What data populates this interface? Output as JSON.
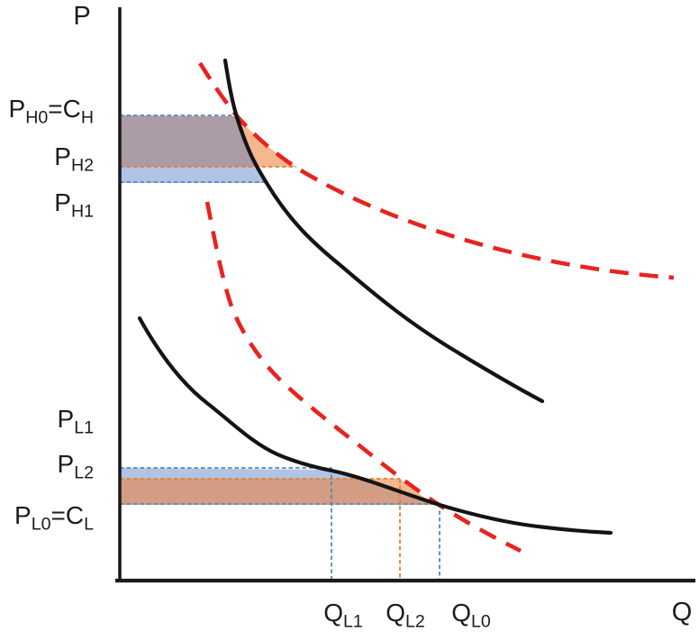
{
  "figure": {
    "type": "economics price-quantity diagram",
    "axes": {
      "y_title": "P",
      "x_title": "Q"
    },
    "price_labels": [
      {
        "key": "ph0",
        "text": "P_{H0}=C_{H}"
      },
      {
        "key": "ph2",
        "text": "P_{H2}"
      },
      {
        "key": "ph1",
        "text": "P_{H1}"
      },
      {
        "key": "pl1",
        "text": "P_{L1}"
      },
      {
        "key": "pl2",
        "text": "P_{L2}"
      },
      {
        "key": "pl0",
        "text": "P_{L0}=C_{L}"
      }
    ],
    "quantity_labels": [
      {
        "key": "ql1",
        "text": "Q_{L1}"
      },
      {
        "key": "ql2",
        "text": "Q_{L2}"
      },
      {
        "key": "ql0",
        "text": "Q_{L0}"
      }
    ],
    "curves": [
      {
        "key": "upper_solid",
        "style": "solid",
        "color": "#141414"
      },
      {
        "key": "upper_dashed",
        "style": "dashed",
        "color": "#e8231f"
      },
      {
        "key": "lower_solid",
        "style": "solid",
        "color": "#141414"
      },
      {
        "key": "lower_dashed",
        "style": "dashed",
        "color": "#e8231f"
      }
    ],
    "regions": [
      {
        "key": "upper_blue_band",
        "color": "#4472c4"
      },
      {
        "key": "upper_orange_area",
        "color": "#ed7d31"
      },
      {
        "key": "lower_blue_band",
        "color": "#4472c4"
      },
      {
        "key": "lower_orange_area",
        "color": "#ed7d31"
      }
    ],
    "colors": {
      "axis": "#1c1c1c",
      "curve_black": "#141414",
      "curve_red": "#e8231f",
      "guide_blue": "#5b86b8",
      "guide_orange": "#e2802f",
      "region_blue": "#4472c4",
      "region_orange": "#ed7d31",
      "text": "#1c1c1c",
      "background": "#ffffff"
    }
  }
}
